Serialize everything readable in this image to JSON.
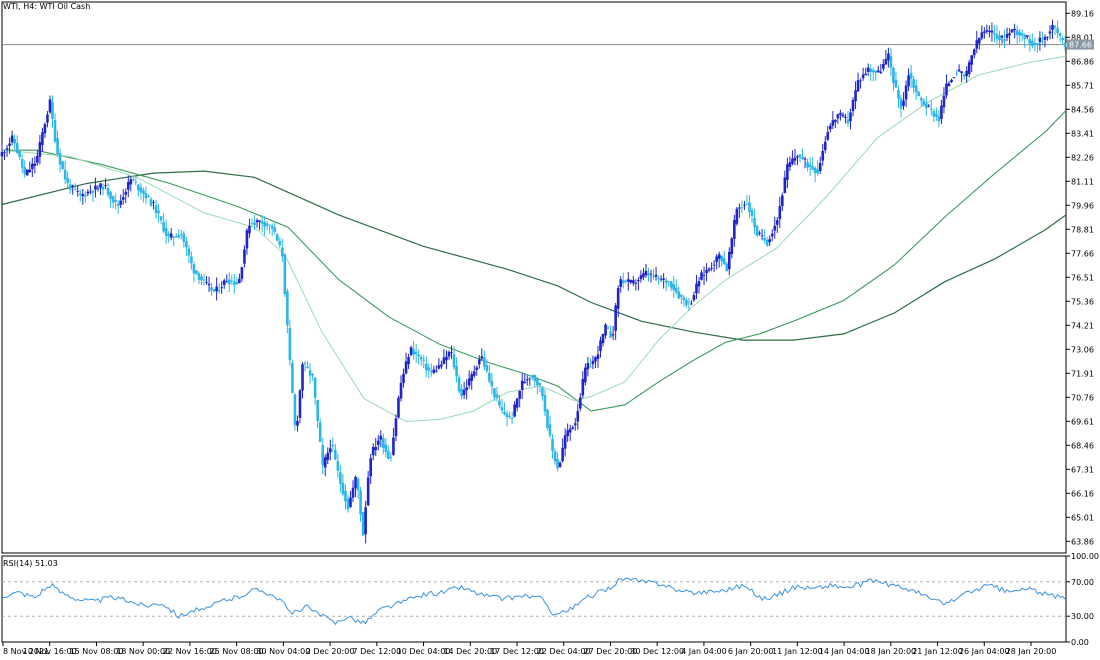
{
  "header": {
    "title": "WTI, H4:  WTI Oil Cash"
  },
  "price_badge": "87.66",
  "rsi_panel": {
    "title": "RSI(14) 51.03",
    "levels": [
      70,
      30
    ],
    "ylim": [
      0,
      100
    ],
    "ticks": [
      "100.00",
      "70.00",
      "30.00",
      "0.00"
    ]
  },
  "colors": {
    "bull": "#1f24c9",
    "bear": "#2ab6e8",
    "ma_fast": "#9ad9b3",
    "ma_mid": "#3c9a5f",
    "ma_slow": "#2e6b45",
    "rsi_line": "#3a92e0",
    "hline": "#8a8a8a",
    "badge_bg": "#8a97a5"
  },
  "chart_data": {
    "type": "candlestick",
    "title": "WTI, H4:  WTI Oil Cash",
    "ylim": [
      63.3,
      89.7
    ],
    "y_ticks": [
      "89.16",
      "88.01",
      "86.86",
      "85.71",
      "84.56",
      "83.41",
      "82.26",
      "81.11",
      "79.96",
      "78.81",
      "77.66",
      "76.51",
      "75.36",
      "74.21",
      "73.06",
      "71.91",
      "70.76",
      "69.61",
      "68.46",
      "67.31",
      "66.16",
      "65.01",
      "63.86"
    ],
    "x_ticks": [
      "8 Nov 2021",
      "10 Nov 16:00",
      "15 Nov 08:00",
      "18 Nov 00:00",
      "22 Nov 16:00",
      "25 Nov 08:00",
      "30 Nov 04:00",
      "2 Dec 20:00",
      "7 Dec 12:00",
      "10 Dec 04:00",
      "14 Dec 20:00",
      "17 Dec 12:00",
      "22 Dec 04:00",
      "27 Dec 20:00",
      "30 Dec 12:00",
      "4 Jan 04:00",
      "6 Jan 20:00",
      "11 Jan 12:00",
      "14 Jan 04:00",
      "18 Jan 20:00",
      "21 Jan 12:00",
      "26 Jan 04:00",
      "28 Jan 20:00"
    ],
    "horizontal_line": 87.66,
    "price_path": [
      [
        0,
        82.3
      ],
      [
        8,
        83.2
      ],
      [
        15,
        81.4
      ],
      [
        22,
        82.1
      ],
      [
        26,
        83.6
      ],
      [
        30,
        84.9
      ],
      [
        34,
        82.6
      ],
      [
        40,
        81.0
      ],
      [
        48,
        80.4
      ],
      [
        55,
        80.7
      ],
      [
        62,
        80.9
      ],
      [
        70,
        79.9
      ],
      [
        78,
        81.2
      ],
      [
        85,
        80.6
      ],
      [
        92,
        79.9
      ],
      [
        100,
        78.4
      ],
      [
        108,
        78.6
      ],
      [
        115,
        76.9
      ],
      [
        122,
        76.2
      ],
      [
        128,
        75.8
      ],
      [
        135,
        76.4
      ],
      [
        142,
        76.2
      ],
      [
        148,
        79.1
      ],
      [
        155,
        79.2
      ],
      [
        162,
        78.9
      ],
      [
        168,
        77.6
      ],
      [
        172,
        72.9
      ],
      [
        176,
        68.9
      ],
      [
        180,
        72.4
      ],
      [
        186,
        71.7
      ],
      [
        192,
        67.4
      ],
      [
        197,
        68.6
      ],
      [
        202,
        66.8
      ],
      [
        207,
        65.5
      ],
      [
        212,
        67.0
      ],
      [
        216,
        64.2
      ],
      [
        220,
        67.9
      ],
      [
        226,
        68.9
      ],
      [
        232,
        67.7
      ],
      [
        238,
        71.3
      ],
      [
        244,
        73.1
      ],
      [
        250,
        72.6
      ],
      [
        256,
        71.9
      ],
      [
        262,
        72.3
      ],
      [
        268,
        73.0
      ],
      [
        274,
        70.8
      ],
      [
        280,
        71.7
      ],
      [
        286,
        72.8
      ],
      [
        292,
        71.3
      ],
      [
        298,
        70.1
      ],
      [
        304,
        69.7
      ],
      [
        310,
        71.4
      ],
      [
        316,
        71.9
      ],
      [
        322,
        71.1
      ],
      [
        328,
        68.3
      ],
      [
        332,
        67.3
      ],
      [
        336,
        68.9
      ],
      [
        342,
        69.6
      ],
      [
        348,
        72.1
      ],
      [
        354,
        72.6
      ],
      [
        360,
        74.1
      ],
      [
        364,
        73.6
      ],
      [
        368,
        76.4
      ],
      [
        376,
        76.2
      ],
      [
        384,
        76.7
      ],
      [
        392,
        76.4
      ],
      [
        398,
        76.3
      ],
      [
        404,
        75.6
      ],
      [
        410,
        75.2
      ],
      [
        416,
        76.5
      ],
      [
        422,
        77.0
      ],
      [
        428,
        77.6
      ],
      [
        432,
        76.9
      ],
      [
        438,
        79.8
      ],
      [
        444,
        80.1
      ],
      [
        450,
        78.6
      ],
      [
        456,
        78.2
      ],
      [
        462,
        79.3
      ],
      [
        468,
        81.8
      ],
      [
        474,
        82.4
      ],
      [
        480,
        81.9
      ],
      [
        486,
        81.6
      ],
      [
        492,
        83.6
      ],
      [
        498,
        84.3
      ],
      [
        504,
        84.0
      ],
      [
        510,
        85.9
      ],
      [
        516,
        86.5
      ],
      [
        522,
        86.3
      ],
      [
        528,
        87.1
      ],
      [
        532,
        85.6
      ],
      [
        536,
        84.6
      ],
      [
        540,
        86.3
      ],
      [
        546,
        85.1
      ],
      [
        552,
        84.6
      ],
      [
        558,
        84.1
      ],
      [
        562,
        85.6
      ],
      [
        568,
        86.4
      ],
      [
        574,
        86.1
      ],
      [
        578,
        87.3
      ],
      [
        584,
        88.3
      ],
      [
        590,
        88.2
      ],
      [
        596,
        87.9
      ],
      [
        602,
        88.4
      ],
      [
        608,
        88.1
      ],
      [
        614,
        87.7
      ],
      [
        620,
        87.9
      ],
      [
        626,
        88.6
      ],
      [
        632,
        87.66
      ]
    ],
    "sma_fast_path": [
      [
        0,
        82.6
      ],
      [
        40,
        82.3
      ],
      [
        80,
        81.3
      ],
      [
        120,
        79.6
      ],
      [
        150,
        78.9
      ],
      [
        168,
        77.6
      ],
      [
        190,
        73.9
      ],
      [
        215,
        70.7
      ],
      [
        240,
        69.6
      ],
      [
        260,
        69.7
      ],
      [
        280,
        70.1
      ],
      [
        300,
        71.0
      ],
      [
        320,
        71.3
      ],
      [
        340,
        70.6
      ],
      [
        350,
        70.8
      ],
      [
        370,
        71.5
      ],
      [
        390,
        73.5
      ],
      [
        410,
        75.1
      ],
      [
        430,
        76.4
      ],
      [
        460,
        77.9
      ],
      [
        490,
        80.4
      ],
      [
        520,
        83.2
      ],
      [
        550,
        84.9
      ],
      [
        580,
        86.2
      ],
      [
        610,
        86.8
      ],
      [
        632,
        87.1
      ]
    ],
    "sma_mid_path": [
      [
        0,
        82.6
      ],
      [
        20,
        82.6
      ],
      [
        60,
        81.9
      ],
      [
        100,
        81.0
      ],
      [
        140,
        79.9
      ],
      [
        170,
        78.9
      ],
      [
        200,
        76.4
      ],
      [
        230,
        74.6
      ],
      [
        260,
        73.3
      ],
      [
        290,
        72.4
      ],
      [
        310,
        71.9
      ],
      [
        330,
        71.3
      ],
      [
        350,
        70.1
      ],
      [
        370,
        70.4
      ],
      [
        390,
        71.5
      ],
      [
        410,
        72.5
      ],
      [
        430,
        73.4
      ],
      [
        450,
        73.8
      ],
      [
        470,
        74.4
      ],
      [
        500,
        75.4
      ],
      [
        530,
        77.1
      ],
      [
        560,
        79.4
      ],
      [
        590,
        81.5
      ],
      [
        620,
        83.5
      ],
      [
        632,
        84.5
      ]
    ],
    "sma_slow_path": [
      [
        0,
        80.0
      ],
      [
        50,
        81.0
      ],
      [
        90,
        81.5
      ],
      [
        120,
        81.6
      ],
      [
        150,
        81.3
      ],
      [
        200,
        79.5
      ],
      [
        250,
        78.0
      ],
      [
        300,
        76.9
      ],
      [
        330,
        76.1
      ],
      [
        350,
        75.3
      ],
      [
        380,
        74.4
      ],
      [
        410,
        73.9
      ],
      [
        440,
        73.5
      ],
      [
        470,
        73.5
      ],
      [
        500,
        73.8
      ],
      [
        530,
        74.8
      ],
      [
        560,
        76.3
      ],
      [
        590,
        77.4
      ],
      [
        620,
        78.8
      ],
      [
        632,
        79.5
      ]
    ],
    "rsi_path": [
      [
        0,
        54
      ],
      [
        10,
        58
      ],
      [
        20,
        52
      ],
      [
        25,
        62
      ],
      [
        30,
        65
      ],
      [
        35,
        58
      ],
      [
        45,
        50
      ],
      [
        55,
        47
      ],
      [
        65,
        52
      ],
      [
        75,
        48
      ],
      [
        85,
        42
      ],
      [
        95,
        46
      ],
      [
        105,
        30
      ],
      [
        115,
        38
      ],
      [
        120,
        36
      ],
      [
        130,
        48
      ],
      [
        140,
        52
      ],
      [
        148,
        60
      ],
      [
        155,
        60
      ],
      [
        165,
        50
      ],
      [
        172,
        32
      ],
      [
        180,
        42
      ],
      [
        190,
        30
      ],
      [
        198,
        22
      ],
      [
        205,
        30
      ],
      [
        215,
        22
      ],
      [
        225,
        38
      ],
      [
        240,
        48
      ],
      [
        250,
        55
      ],
      [
        262,
        58
      ],
      [
        272,
        64
      ],
      [
        285,
        55
      ],
      [
        298,
        50
      ],
      [
        310,
        54
      ],
      [
        320,
        51
      ],
      [
        328,
        32
      ],
      [
        338,
        38
      ],
      [
        348,
        52
      ],
      [
        360,
        62
      ],
      [
        368,
        74
      ],
      [
        380,
        70
      ],
      [
        392,
        68
      ],
      [
        404,
        58
      ],
      [
        416,
        58
      ],
      [
        428,
        60
      ],
      [
        440,
        66
      ],
      [
        452,
        50
      ],
      [
        462,
        56
      ],
      [
        472,
        65
      ],
      [
        482,
        62
      ],
      [
        492,
        66
      ],
      [
        502,
        63
      ],
      [
        512,
        68
      ],
      [
        518,
        72
      ],
      [
        528,
        66
      ],
      [
        538,
        62
      ],
      [
        550,
        52
      ],
      [
        560,
        44
      ],
      [
        570,
        54
      ],
      [
        580,
        62
      ],
      [
        586,
        66
      ],
      [
        598,
        58
      ],
      [
        610,
        62
      ],
      [
        622,
        54
      ],
      [
        632,
        51
      ]
    ]
  }
}
